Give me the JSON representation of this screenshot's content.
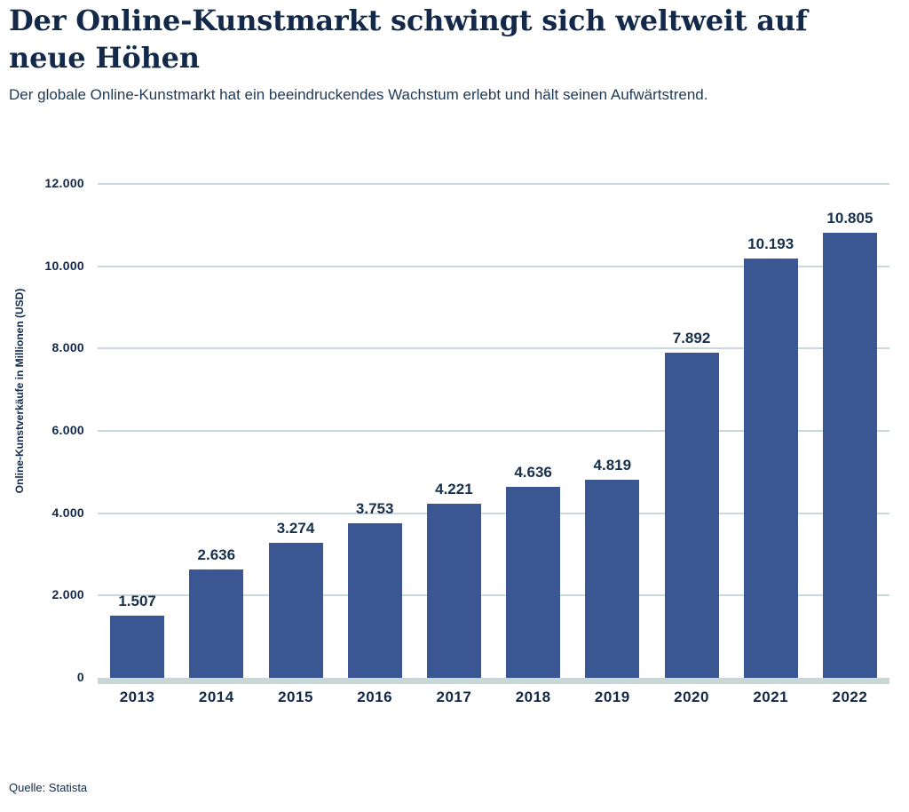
{
  "header": {
    "title": "Der Online-Kunstmarkt schwingt sich weltweit auf neue Höhen",
    "subtitle": "Der globale Online-Kunstmarkt hat ein beeindruckendes Wachstum erlebt und hält seinen Aufwärtstrend."
  },
  "chart_data": {
    "type": "bar",
    "title": "Der Online-Kunstmarkt schwingt sich weltweit auf neue Höhen",
    "categories": [
      "2013",
      "2014",
      "2015",
      "2016",
      "2017",
      "2018",
      "2019",
      "2020",
      "2021",
      "2022"
    ],
    "values": [
      1507,
      2636,
      3274,
      3753,
      4221,
      4636,
      4819,
      7892,
      10193,
      10805
    ],
    "value_labels": [
      "1.507",
      "2.636",
      "3.274",
      "3.753",
      "4.221",
      "4.636",
      "4.819",
      "7.892",
      "10.193",
      "10.805"
    ],
    "xlabel": "",
    "ylabel": "Online-Kunstverkäufe in Millionen (USD)",
    "ylim": [
      0,
      12000
    ],
    "y_ticks": [
      {
        "value": 0,
        "label": "0"
      },
      {
        "value": 2000,
        "label": "2.000"
      },
      {
        "value": 4000,
        "label": "4.000"
      },
      {
        "value": 6000,
        "label": "6.000"
      },
      {
        "value": 8000,
        "label": "8.000"
      },
      {
        "value": 10000,
        "label": "10.000"
      },
      {
        "value": 12000,
        "label": "12.000"
      }
    ],
    "grid": "horizontal",
    "legend": "none",
    "bar_color": "#3a5794"
  },
  "footer": {
    "source": "Quelle: Statista"
  },
  "colors": {
    "bar": "#3a5794",
    "gridline": "#c9d8da",
    "baseline": "#c7d8d6",
    "text": "#13294a",
    "background": "#ffffff"
  }
}
